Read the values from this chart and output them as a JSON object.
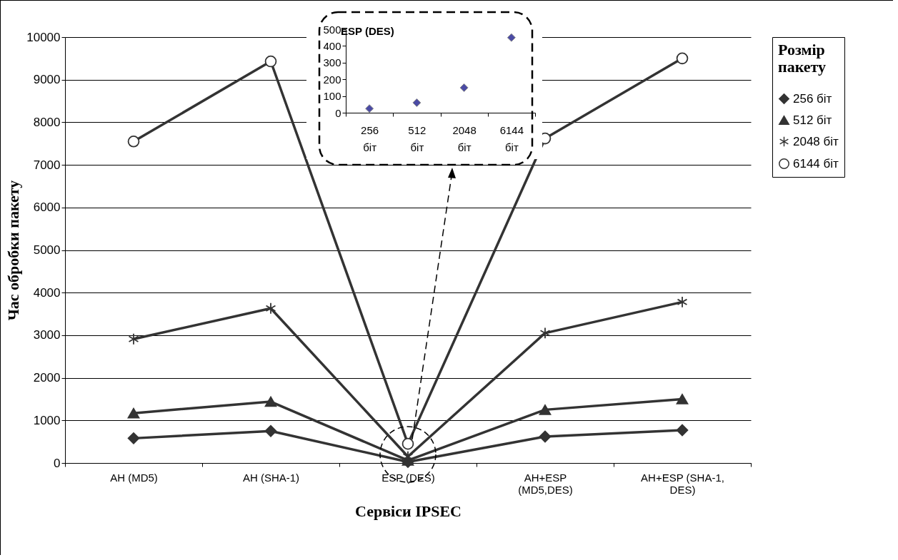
{
  "chart_data": [
    {
      "type": "line",
      "xlabel": "Сервіси IPSEC",
      "ylabel": "Час обробки пакету",
      "legend_title": "Розмір пакету",
      "legend": "right",
      "grid": "y",
      "line_style": "solid",
      "categories": [
        "AH (MD5)",
        "AH (SHA-1)",
        "ESP (DES)",
        "AH+ESP (MD5,DES)",
        "AH+ESP (SHA-1, DES)"
      ],
      "ylim": [
        0,
        10000
      ],
      "yticks": [
        0,
        1000,
        2000,
        3000,
        4000,
        5000,
        6000,
        7000,
        8000,
        9000,
        10000
      ],
      "series": [
        {
          "name": "256 біт",
          "color": "#333333",
          "marker": "diamond",
          "values": [
            580,
            750,
            25,
            620,
            770
          ]
        },
        {
          "name": "512 біт",
          "color": "#333333",
          "marker": "triangle",
          "values": [
            1170,
            1440,
            60,
            1250,
            1500
          ]
        },
        {
          "name": "2048 біт",
          "color": "#333333",
          "marker": "cross",
          "values": [
            2910,
            3630,
            150,
            3050,
            3780
          ]
        },
        {
          "name": "6144 біт",
          "color": "#333333",
          "marker": "circle",
          "values": [
            7550,
            9430,
            450,
            7620,
            9500
          ]
        }
      ]
    },
    {
      "type": "scatter",
      "title": "ESP (DES)",
      "marker": "diamond",
      "color": "#000080",
      "categories": [
        "256 біт",
        "512 біт",
        "2048 біт",
        "6144 біт"
      ],
      "values": [
        25,
        60,
        150,
        450
      ],
      "ylim": [
        0,
        500
      ],
      "yticks": [
        0,
        100,
        200,
        300,
        400,
        500
      ]
    }
  ]
}
